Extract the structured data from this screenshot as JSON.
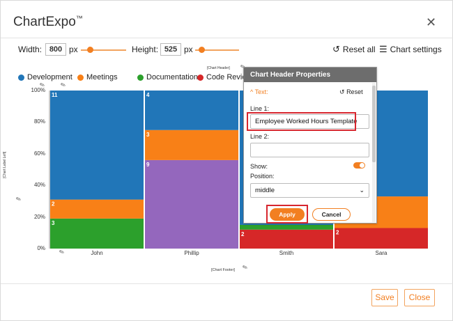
{
  "app": {
    "title": "ChartExpo",
    "trademark": "™"
  },
  "controls": {
    "width_label": "Width:",
    "width_value": "800",
    "width_unit": "px",
    "height_label": "Height:",
    "height_value": "525",
    "height_unit": "px",
    "reset_all": "Reset all",
    "chart_settings": "Chart settings"
  },
  "chart_header_placeholder": "[Chart Header]",
  "chart_footer_placeholder": "[Chart Footer]",
  "y_axis_label_placeholder": "[Chart Label Left]",
  "chart_data": {
    "type": "bar",
    "categories": [
      "John",
      "Phillip",
      "Smith",
      "Sara"
    ],
    "y_ticks": [
      "0%",
      "20%",
      "40%",
      "60%",
      "80%",
      "100%"
    ],
    "ylim": [
      0,
      100
    ],
    "legend_position": "top",
    "series": [
      {
        "name": "Development",
        "color": "#2176b8"
      },
      {
        "name": "Meetings",
        "color": "#f88017"
      },
      {
        "name": "Documentation",
        "color": "#2ca02c"
      },
      {
        "name": "Code Review",
        "color": "#d62728"
      },
      {
        "color": "#9467bd"
      }
    ],
    "segments": [
      {
        "category": "John",
        "series": 2,
        "value": 19,
        "label": "3"
      },
      {
        "category": "John",
        "series": 1,
        "value": 12,
        "label": "2"
      },
      {
        "category": "John",
        "series": 0,
        "value": 69,
        "label": "11"
      },
      {
        "category": "Phillip",
        "series": 4,
        "value": 56,
        "label": "9"
      },
      {
        "category": "Phillip",
        "series": 1,
        "value": 19,
        "label": "3"
      },
      {
        "category": "Phillip",
        "series": 0,
        "value": 25,
        "label": "4"
      },
      {
        "category": "Smith",
        "series": 3,
        "value": 12,
        "label": "2"
      },
      {
        "category": "Smith",
        "series": 2,
        "value": 3,
        "label": ""
      },
      {
        "category": "Smith",
        "series": 0,
        "value": 85,
        "label": ""
      },
      {
        "category": "Sara",
        "series": 3,
        "value": 13,
        "label": "2"
      },
      {
        "category": "Sara",
        "series": 1,
        "value": 20,
        "label": ""
      },
      {
        "category": "Sara",
        "series": 0,
        "value": 67,
        "label": ""
      }
    ]
  },
  "panel": {
    "title": "Chart Header Properties",
    "section": "Text:",
    "reset": "Reset",
    "line1_label": "Line 1:",
    "line1_value": "Employee Worked Hours Template",
    "line2_label": "Line 2:",
    "line2_value": "",
    "show_label": "Show:",
    "show_value": true,
    "position_label": "Position:",
    "position_value": "middle",
    "apply": "Apply",
    "cancel": "Cancel"
  },
  "footer": {
    "save": "Save",
    "close": "Close"
  },
  "colors": {
    "accent": "#f27f21",
    "highlight": "#d7262e"
  }
}
